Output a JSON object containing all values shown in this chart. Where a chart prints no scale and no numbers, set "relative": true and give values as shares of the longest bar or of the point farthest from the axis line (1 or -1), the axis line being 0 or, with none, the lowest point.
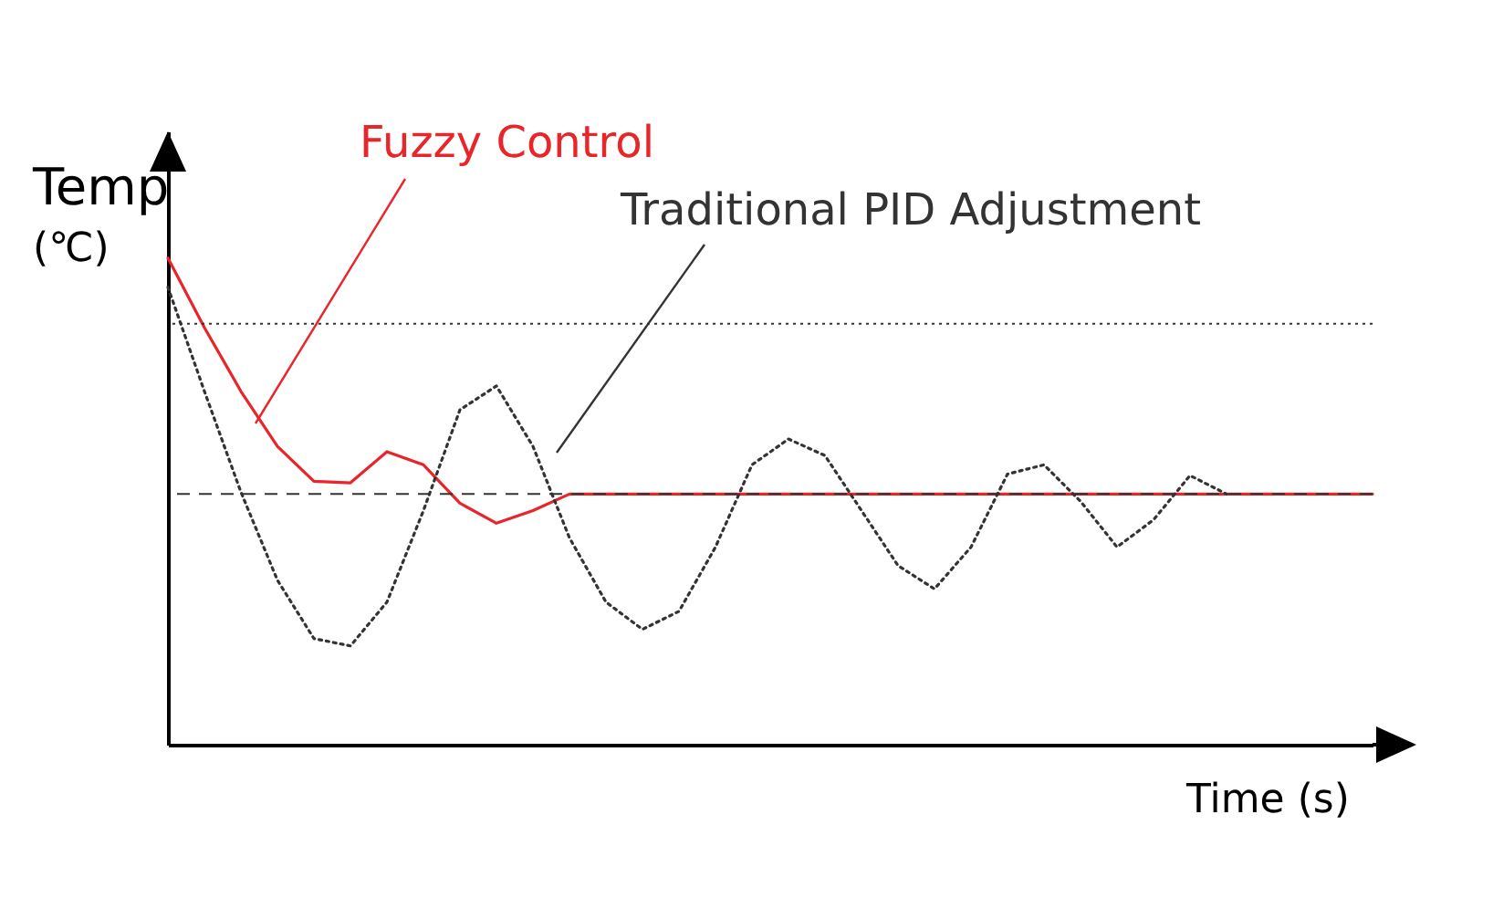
{
  "chart_data": {
    "type": "line",
    "relative": true,
    "xlabel": "Time (s)",
    "ylabel": "Temp (℃)",
    "grid": false,
    "marker": "none",
    "categories": [
      null,
      null,
      null,
      null,
      null,
      null,
      null,
      null,
      null,
      null,
      null,
      null,
      null,
      null,
      null,
      null,
      null,
      null,
      null,
      null,
      null,
      null,
      null,
      null,
      null,
      null,
      null,
      null,
      null,
      null,
      null,
      null,
      null,
      null
    ],
    "series": [
      {
        "name": "Fuzzy Control",
        "color": "#e8262a",
        "line_style": "solid",
        "values": [
          1.0,
          0.857,
          0.726,
          0.613,
          0.541,
          0.538,
          0.602,
          0.575,
          0.496,
          0.455,
          0.481,
          0.515,
          0.515,
          0.515,
          0.515,
          0.515,
          0.515,
          0.515,
          0.515,
          0.515,
          0.515,
          0.515,
          0.515,
          0.515,
          0.515,
          0.515,
          0.515,
          0.515,
          0.515,
          0.515,
          0.515,
          0.515,
          0.515,
          0.515
        ]
      },
      {
        "name": "Traditional PID Adjustment",
        "color": "#333333",
        "line_style": "dotted",
        "values": [
          0.94,
          0.726,
          0.519,
          0.338,
          0.218,
          0.203,
          0.293,
          0.481,
          0.688,
          0.737,
          0.613,
          0.425,
          0.293,
          0.237,
          0.274,
          0.406,
          0.575,
          0.628,
          0.594,
          0.481,
          0.368,
          0.32,
          0.406,
          0.556,
          0.575,
          0.5,
          0.406,
          0.462,
          0.553,
          0.515,
          null,
          null,
          null,
          null
        ]
      }
    ],
    "ref_lines": [
      {
        "axis": "y",
        "value": 0.865,
        "line_style": "dotted",
        "color": "#333333"
      },
      {
        "axis": "y",
        "value": 0.515,
        "line_style": "dashed",
        "color": "#333333"
      }
    ]
  }
}
